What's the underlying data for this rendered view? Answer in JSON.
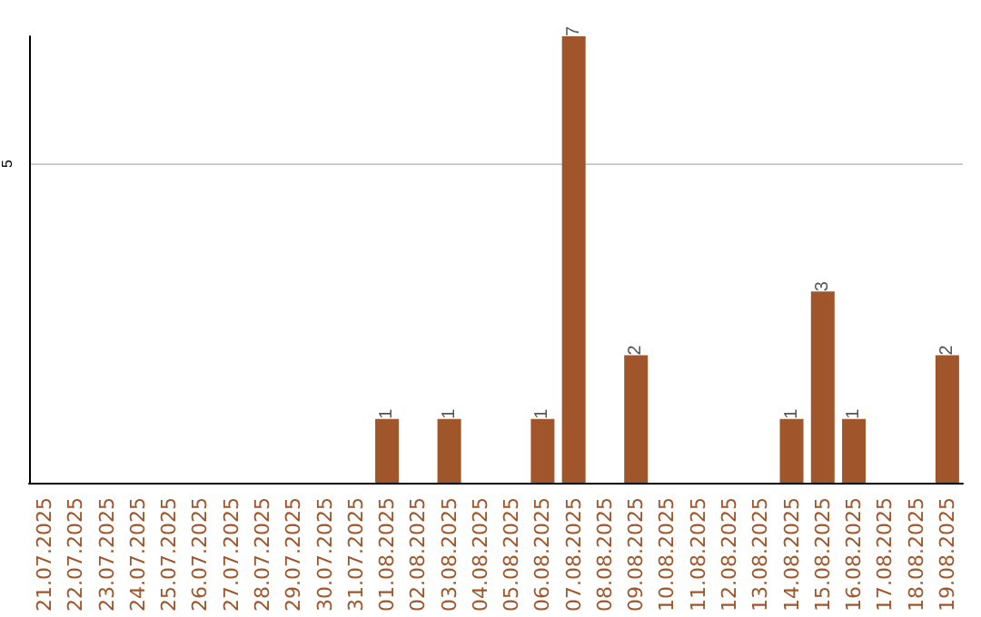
{
  "chart_data": {
    "type": "bar",
    "categories": [
      "21.07.2025",
      "22.07.2025",
      "23.07.2025",
      "24.07.2025",
      "25.07.2025",
      "26.07.2025",
      "27.07.2025",
      "28.07.2025",
      "29.07.2025",
      "30.07.2025",
      "31.07.2025",
      "01.08.2025",
      "02.08.2025",
      "03.08.2025",
      "04.08.2025",
      "05.08.2025",
      "06.08.2025",
      "07.08.2025",
      "08.08.2025",
      "09.08.2025",
      "10.08.2025",
      "11.08.2025",
      "12.08.2025",
      "13.08.2025",
      "14.08.2025",
      "15.08.2025",
      "16.08.2025",
      "17.08.2025",
      "18.08.2025",
      "19.08.2025"
    ],
    "values": [
      0,
      0,
      0,
      0,
      0,
      0,
      0,
      0,
      0,
      0,
      0,
      1,
      0,
      1,
      0,
      0,
      1,
      7,
      0,
      2,
      0,
      0,
      0,
      0,
      1,
      3,
      1,
      0,
      0,
      2
    ],
    "value_labels": [
      null,
      null,
      null,
      null,
      null,
      null,
      null,
      null,
      null,
      null,
      null,
      "1",
      null,
      "1",
      null,
      null,
      "1",
      "7",
      null,
      "2",
      null,
      null,
      null,
      null,
      "1",
      "3",
      "1",
      null,
      null,
      "2"
    ],
    "color": "#a0562a",
    "ylim": [
      0,
      7
    ],
    "yticks": [
      5
    ],
    "grid": "y"
  }
}
